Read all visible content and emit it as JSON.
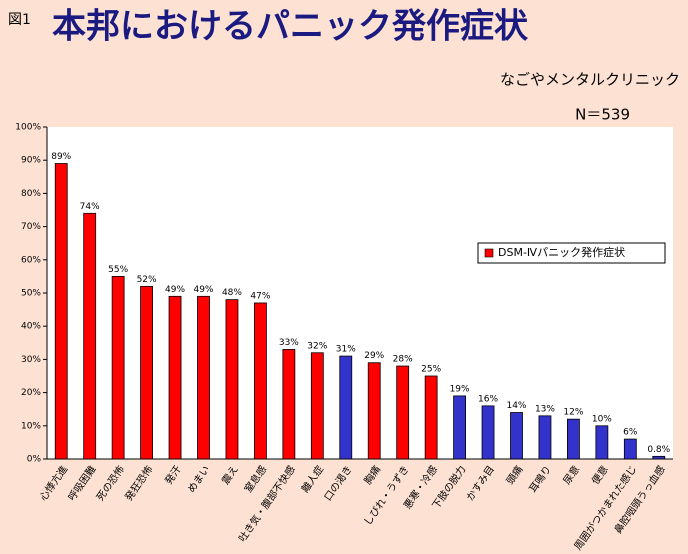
{
  "figure_label": "図1",
  "chart_data": {
    "type": "bar",
    "title": "本邦におけるパニック発作症状",
    "subtitle": "なごやメンタルクリニック",
    "sample_size": "N＝539",
    "categories": [
      "心悸亢進",
      "呼吸困難",
      "死の恐怖",
      "発狂恐怖",
      "発汗",
      "めまい",
      "震え",
      "窒息感",
      "吐き気・腹部不快感",
      "離人症",
      "口の渇き",
      "胸痛",
      "しびれ・うずき",
      "悪寒・冷感",
      "下肢の脱力",
      "かすみ目",
      "頭痛",
      "耳鳴り",
      "尿意",
      "便意",
      "周囲がつかまれた感じ",
      "鼻腔咽頭うっ血感"
    ],
    "series": [
      {
        "name": "DSM-Ⅳパニック発作症状",
        "color": "#ff0000",
        "values": [
          89,
          74,
          55,
          52,
          49,
          49,
          48,
          47,
          33,
          32,
          31,
          29,
          28,
          25,
          19,
          16,
          14,
          13,
          12,
          10,
          6,
          0.8
        ],
        "value_labels": [
          "89%",
          "74%",
          "55%",
          "52%",
          "49%",
          "49%",
          "48%",
          "47%",
          "33%",
          "32%",
          "31%",
          "29%",
          "28%",
          "25%",
          "19%",
          "16%",
          "14%",
          "13%",
          "12%",
          "10%",
          "6%",
          "0.8%"
        ],
        "bar_colors": [
          "#ff0000",
          "#ff0000",
          "#ff0000",
          "#ff0000",
          "#ff0000",
          "#ff0000",
          "#ff0000",
          "#ff0000",
          "#ff0000",
          "#ff0000",
          "#3333cc",
          "#ff0000",
          "#ff0000",
          "#ff0000",
          "#3333cc",
          "#3333cc",
          "#3333cc",
          "#3333cc",
          "#3333cc",
          "#3333cc",
          "#3333cc",
          "#3333cc"
        ]
      }
    ],
    "ylim": [
      0,
      100
    ],
    "yticks": [
      {
        "value": 0,
        "label": "0%"
      },
      {
        "value": 10,
        "label": "10%"
      },
      {
        "value": 20,
        "label": "20%"
      },
      {
        "value": 30,
        "label": "30%"
      },
      {
        "value": 40,
        "label": "40%"
      },
      {
        "value": 50,
        "label": "50%"
      },
      {
        "value": 60,
        "label": "60%"
      },
      {
        "value": 70,
        "label": "70%"
      },
      {
        "value": 80,
        "label": "80%"
      },
      {
        "value": 90,
        "label": "90%"
      },
      {
        "value": 100,
        "label": "100%"
      }
    ],
    "grid": false,
    "legend": "right"
  }
}
